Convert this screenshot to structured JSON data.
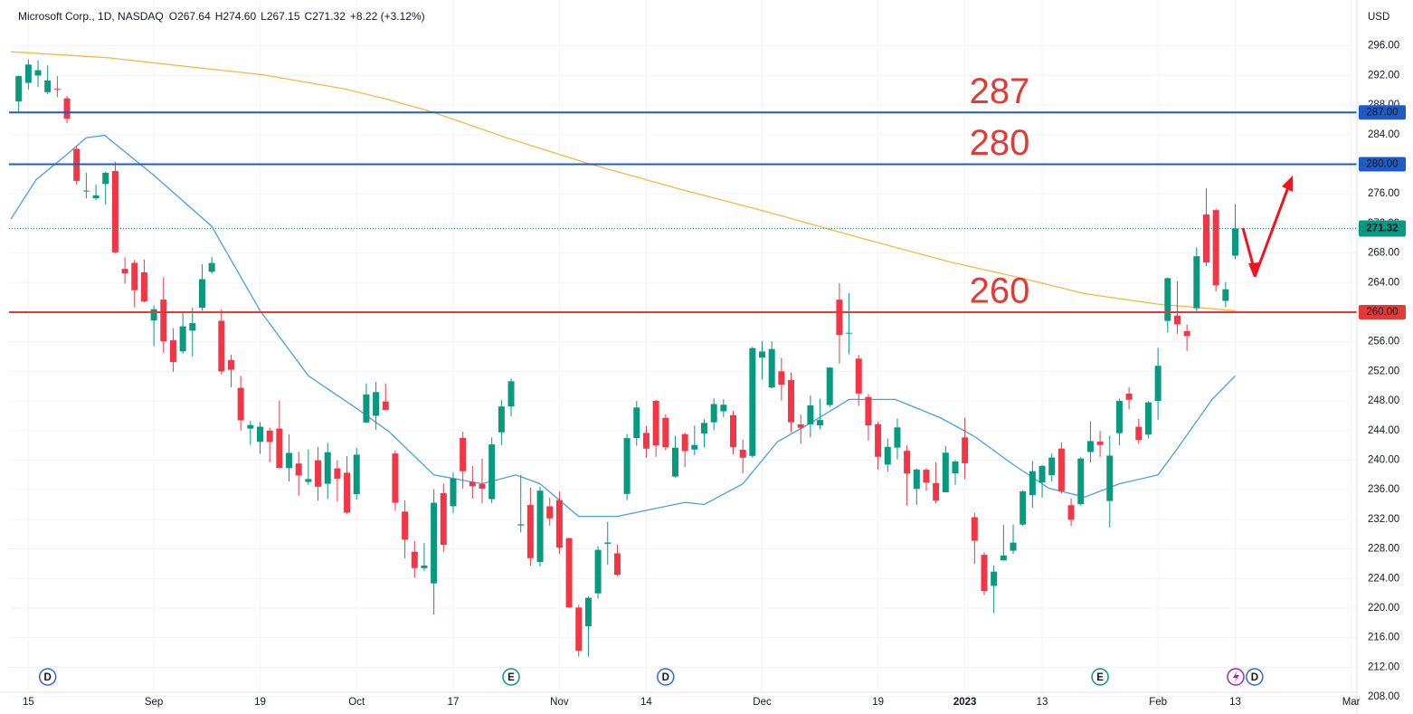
{
  "chart_data": {
    "type": "candlestick",
    "title": "Microsoft Corp., 1D, NASDAQ",
    "ohlc_header": [
      {
        "key": "O",
        "value": "267.64"
      },
      {
        "key": "H",
        "value": "274.60"
      },
      {
        "key": "L",
        "value": "267.15"
      },
      {
        "key": "C",
        "value": "271.32"
      }
    ],
    "change": "+8.22 (+3.12%)",
    "currency": "USD",
    "up_color": "#089981",
    "down_color": "#f23645",
    "grid": true,
    "open": [
      288.48,
      291.0,
      291.99,
      289.74,
      290.19,
      288.9,
      282.08,
      276.44,
      275.41,
      277.33,
      279.08,
      265.85,
      266.67,
      265.39,
      258.87,
      261.7,
      256.2,
      254.7,
      257.5,
      260.6,
      265.46,
      258.84,
      253.53,
      249.77,
      244.26,
      242.47,
      243.98,
      244.27,
      238.92,
      239.54,
      237.05,
      239.98,
      236.81,
      238.89,
      238.29,
      235.41,
      245.09,
      245.99,
      247.93,
      240.9,
      233.05,
      227.62,
      225.4,
      223.34,
      235.54,
      233.77,
      243.0,
      237.04,
      236.77,
      234.74,
      243.76,
      247.26,
      231.17,
      233.93,
      226.24,
      233.76,
      234.6,
      229.46,
      220.08,
      217.55,
      221.99,
      228.7,
      227.4,
      235.43,
      242.99,
      243.68,
      248.02,
      245.71,
      237.78,
      243.51,
      241.43,
      243.6,
      245.11,
      246.6,
      246.08,
      241.4,
      240.57,
      253.87,
      249.82,
      252.01,
      250.82,
      244.83,
      244.84,
      244.7,
      247.45,
      261.69,
      257.13,
      253.72,
      248.55,
      244.86,
      239.4,
      241.69,
      241.26,
      236.11,
      238.7,
      236.89,
      235.65,
      238.21,
      243.08,
      232.28,
      227.2,
      223.0,
      226.45,
      227.76,
      231.29,
      235.26,
      237.0,
      237.97,
      241.57,
      233.91,
      234.05,
      241.1,
      242.5,
      234.48,
      243.65,
      248.99,
      244.51,
      243.45,
      248.0,
      258.82,
      259.54,
      257.44,
      260.53,
      273.2,
      273.8,
      261.53,
      267.64
    ],
    "high": [
      292.0,
      294.18,
      294.04,
      293.35,
      291.91,
      289.25,
      282.46,
      278.86,
      277.23,
      279.02,
      280.34,
      267.4,
      267.05,
      267.11,
      260.89,
      264.74,
      257.83,
      260.15,
      260.62,
      266.47,
      267.45,
      260.4,
      254.23,
      251.4,
      245.3,
      245.14,
      244.38,
      248.06,
      243.51,
      241.13,
      241.45,
      241.8,
      242.33,
      239.95,
      240.54,
      241.63,
      250.36,
      250.58,
      250.35,
      241.32,
      234.56,
      229.06,
      228.79,
      236.09,
      236.85,
      238.34,
      243.85,
      239.2,
      240.2,
      243.07,
      248.1,
      251.04,
      238.0,
      236.28,
      236.41,
      234.92,
      235.74,
      229.5,
      220.41,
      221.59,
      228.36,
      231.65,
      228.56,
      243.53,
      247.99,
      244.62,
      248.19,
      246.17,
      243.25,
      243.74,
      244.68,
      245.53,
      248.35,
      248.23,
      246.65,
      242.79,
      255.33,
      256.12,
      256.06,
      253.82,
      251.86,
      246.16,
      248.74,
      248.31,
      252.54,
      263.92,
      262.59,
      254.2,
      248.94,
      245.21,
      242.91,
      245.62,
      241.99,
      238.87,
      238.93,
      239.72,
      241.92,
      239.96,
      245.75,
      232.87,
      227.55,
      225.76,
      231.24,
      231.31,
      235.95,
      239.9,
      239.37,
      240.91,
      242.38,
      234.84,
      240.44,
      245.24,
      243.95,
      243.3,
      248.31,
      249.83,
      245.6,
      247.95,
      255.18,
      264.69,
      264.2,
      258.3,
      268.77,
      276.76,
      273.98,
      264.09,
      274.6
    ],
    "low": [
      286.94,
      290.11,
      290.42,
      289.47,
      289.08,
      285.56,
      277.22,
      275.4,
      275.11,
      274.52,
      267.98,
      263.85,
      260.66,
      261.33,
      255.41,
      254.47,
      251.94,
      254.38,
      254.02,
      260.18,
      265.22,
      251.59,
      249.86,
      244.02,
      242.06,
      240.85,
      239.72,
      238.9,
      237.12,
      235.2,
      236.66,
      234.5,
      234.73,
      234.41,
      232.73,
      234.66,
      244.98,
      244.1,
      246.79,
      233.17,
      226.73,
      224.11,
      225.05,
      219.13,
      227.6,
      232.81,
      236.14,
      234.79,
      234.16,
      234.16,
      242.04,
      245.92,
      230.21,
      225.73,
      225.62,
      231.15,
      227.33,
      220.08,
      213.43,
      213.43,
      221.28,
      225.84,
      224.33,
      234.59,
      241.93,
      240.31,
      240.45,
      241.35,
      237.63,
      239.04,
      240.64,
      241.71,
      244.06,
      245.82,
      240.8,
      238.21,
      240.3,
      250.91,
      249.69,
      248.06,
      243.78,
      242.21,
      243.06,
      244.16,
      247.17,
      253.07,
      254.31,
      247.34,
      242.64,
      238.71,
      238.42,
      240.11,
      233.87,
      233.94,
      235.83,
      234.17,
      235.65,
      236.66,
      237.4,
      225.96,
      221.76,
      219.35,
      226.41,
      227.33,
      231.11,
      233.56,
      234.92,
      237.09,
      235.52,
      231.1,
      233.87,
      239.65,
      240.44,
      230.9,
      242.0,
      246.83,
      242.2,
      242.95,
      245.47,
      257.25,
      257.1,
      254.78,
      260.08,
      266.21,
      262.8,
      260.66,
      267.15
    ],
    "close": [
      291.91,
      293.47,
      292.71,
      291.32,
      290.17,
      286.15,
      277.75,
      276.44,
      275.79,
      278.85,
      268.09,
      265.23,
      262.97,
      261.47,
      260.4,
      256.06,
      253.25,
      258.09,
      258.52,
      264.46,
      266.65,
      251.99,
      252.22,
      245.38,
      244.74,
      244.52,
      242.45,
      238.95,
      240.98,
      237.92,
      237.45,
      236.41,
      241.07,
      237.5,
      232.9,
      240.74,
      248.88,
      249.2,
      246.79,
      234.24,
      229.25,
      225.41,
      225.75,
      234.24,
      228.56,
      237.53,
      238.5,
      236.48,
      236.15,
      242.12,
      247.25,
      250.66,
      231.32,
      226.75,
      235.87,
      232.13,
      228.17,
      220.1,
      214.25,
      221.39,
      227.87,
      228.87,
      224.51,
      242.98,
      247.11,
      241.55,
      241.97,
      241.73,
      241.68,
      241.22,
      242.05,
      245.03,
      247.58,
      247.49,
      241.76,
      240.33,
      255.14,
      254.69,
      255.02,
      250.2,
      245.12,
      244.37,
      247.4,
      245.42,
      252.51,
      256.92,
      257.22,
      249.01,
      244.69,
      240.45,
      241.8,
      244.43,
      238.19,
      238.73,
      236.96,
      234.53,
      241.01,
      239.82,
      239.58,
      229.1,
      222.31,
      224.93,
      227.12,
      228.85,
      235.77,
      238.51,
      239.23,
      240.35,
      235.81,
      231.93,
      240.22,
      242.58,
      242.04,
      240.61,
      248.0,
      248.16,
      242.71,
      247.81,
      252.75,
      264.6,
      258.35,
      256.77,
      267.56,
      266.73,
      263.62,
      263.1,
      271.32
    ],
    "lines": [
      {
        "color": "#4a9fe6",
        "x": [
          -0.8,
          1.8,
          4.7,
          7,
          8.9,
          14,
          20,
          25,
          30,
          35,
          38.4,
          43,
          48,
          51.5,
          54,
          58,
          62,
          69,
          71,
          75,
          78.6,
          82,
          86,
          90.8,
          95.5,
          99,
          103,
          106.7,
          110.4,
          114,
          118,
          119.8,
          123.6,
          126
        ],
        "values": [
          272.6,
          277.9,
          281,
          283.6,
          283.9,
          278.5,
          271.6,
          260.2,
          251.4,
          247,
          243.8,
          238,
          236.8,
          238,
          236.8,
          232.4,
          232.4,
          234.3,
          234,
          236.8,
          242.5,
          245,
          248.2,
          248.2,
          245.7,
          243.2,
          239.4,
          236.2,
          235,
          236.8,
          238,
          241.2,
          248.2,
          251.4
        ]
      },
      {
        "color": "#f5b942",
        "x": [
          -0.8,
          9.3,
          16.8,
          25.3,
          33.7,
          38.4,
          43,
          50.5,
          59,
          68.3,
          77.7,
          87,
          96.4,
          103.9,
          110.4,
          117.9,
          126
        ],
        "values": [
          295.2,
          294.4,
          293.3,
          292.1,
          290.2,
          288.7,
          287,
          283.6,
          280.1,
          276.7,
          273.5,
          270.1,
          266.8,
          264.6,
          262.5,
          261.1,
          260.2
        ]
      }
    ],
    "levels": [
      {
        "value": 287,
        "axis_label": "287.00",
        "color": "#1e5bc6"
      },
      {
        "value": 280,
        "axis_label": "280.00",
        "color": "#1e5bc6"
      },
      {
        "value": 260,
        "axis_label": "260.00",
        "color": "#e53935"
      }
    ],
    "last_price": {
      "value": 271.32,
      "color": "#089981"
    },
    "events": [
      {
        "label": "D",
        "x": 3
      },
      {
        "label": "E",
        "x": 51
      },
      {
        "label": "D",
        "x": 67
      },
      {
        "label": "E",
        "x": 112
      },
      {
        "label": "D",
        "x": 128
      }
    ],
    "xlim": [
      -1,
      138.6
    ],
    "ylim": [
      208.62,
      302.2
    ],
    "yticks": [
      {
        "value": 296,
        "label": "296.00"
      },
      {
        "value": 292,
        "label": "292.00"
      },
      {
        "value": 288,
        "label": "288.00"
      },
      {
        "value": 284,
        "label": "284.00"
      },
      {
        "value": 280,
        "label": "280.00"
      },
      {
        "value": 276,
        "label": "276.00"
      },
      {
        "value": 272,
        "label": "272.00"
      },
      {
        "value": 268,
        "label": "268.00"
      },
      {
        "value": 264,
        "label": "264.00"
      },
      {
        "value": 260,
        "label": "260.00"
      },
      {
        "value": 256,
        "label": "256.00"
      },
      {
        "value": 252,
        "label": "252.00"
      },
      {
        "value": 248,
        "label": "248.00"
      },
      {
        "value": 244,
        "label": "244.00"
      },
      {
        "value": 240,
        "label": "240.00"
      },
      {
        "value": 236,
        "label": "236.00"
      },
      {
        "value": 232,
        "label": "232.00"
      },
      {
        "value": 228,
        "label": "228.00"
      },
      {
        "value": 224,
        "label": "224.00"
      },
      {
        "value": 220,
        "label": "220.00"
      },
      {
        "value": 216,
        "label": "216.00"
      },
      {
        "value": 212,
        "label": "212.00"
      },
      {
        "value": 208,
        "label": "208.00"
      }
    ],
    "xticks": [
      {
        "value": 1,
        "label": "15"
      },
      {
        "value": 14,
        "label": "Sep"
      },
      {
        "value": 25,
        "label": "19"
      },
      {
        "value": 35,
        "label": "Oct"
      },
      {
        "value": 45,
        "label": "17"
      },
      {
        "value": 56,
        "label": "Nov"
      },
      {
        "value": 65,
        "label": "14"
      },
      {
        "value": 77,
        "label": "Dec"
      },
      {
        "value": 89,
        "label": "19"
      },
      {
        "value": 98,
        "label": "2023"
      },
      {
        "value": 106,
        "label": "13"
      },
      {
        "value": 118,
        "label": "Feb"
      },
      {
        "value": 126,
        "label": "13"
      },
      {
        "value": 138,
        "label": "Mar"
      }
    ]
  }
}
